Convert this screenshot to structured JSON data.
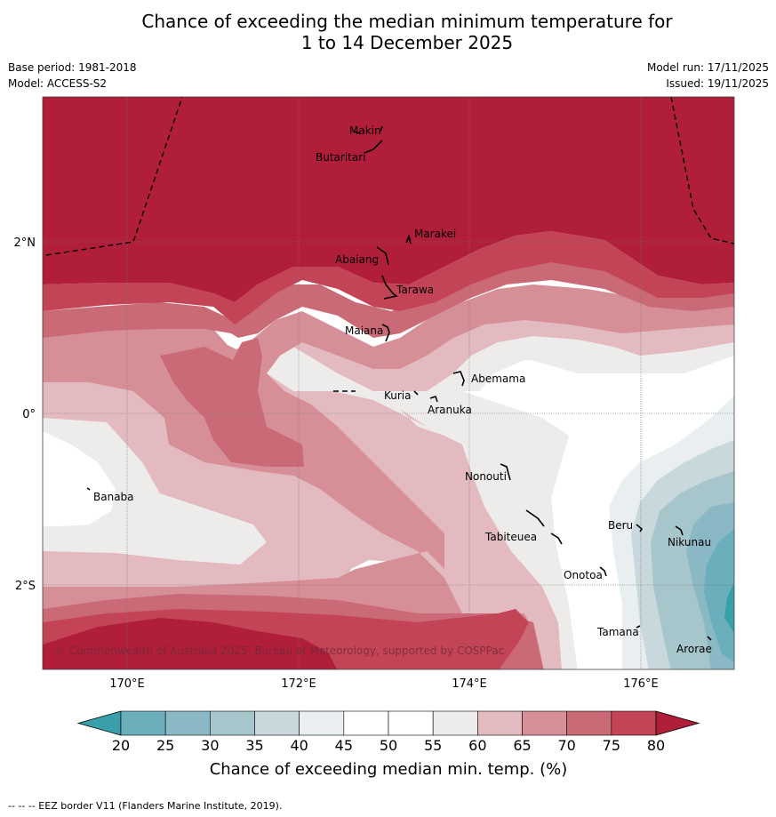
{
  "title": {
    "line1": "Chance of exceeding the median minimum temperature for",
    "line2": "1 to 14 December 2025"
  },
  "meta": {
    "base_period": "Base period: 1981-2018",
    "model": "Model: ACCESS-S2",
    "model_run": "Model run: 17/11/2025",
    "issued": "Issued: 19/11/2025"
  },
  "axes": {
    "x_ticks": [
      "170°E",
      "172°E",
      "174°E",
      "176°E"
    ],
    "y_ticks": [
      "2°N",
      "0°",
      "2°S"
    ]
  },
  "islands": [
    {
      "name": "Makin"
    },
    {
      "name": "Butaritari"
    },
    {
      "name": "Marakei"
    },
    {
      "name": "Abaiang"
    },
    {
      "name": "Tarawa"
    },
    {
      "name": "Maiana"
    },
    {
      "name": "Abemama"
    },
    {
      "name": "Kuria"
    },
    {
      "name": "Aranuka"
    },
    {
      "name": "Nonouti"
    },
    {
      "name": "Banaba"
    },
    {
      "name": "Beru"
    },
    {
      "name": "Nikunau"
    },
    {
      "name": "Tabiteuea"
    },
    {
      "name": "Onotoa"
    },
    {
      "name": "Tamana"
    },
    {
      "name": "Arorae"
    }
  ],
  "copyright": "© Commonwealth of Australia 2025, Bureau of Meteorology, supported by COSPPac",
  "colorbar": {
    "label": "Chance of exceeding median min. temp. (%)",
    "ticks": [
      "20",
      "25",
      "30",
      "35",
      "40",
      "45",
      "50",
      "55",
      "60",
      "65",
      "70",
      "75",
      "80"
    ],
    "colors": [
      "#39a0ab",
      "#6aafbb",
      "#8ab8c4",
      "#a7c6cc",
      "#c9d8dc",
      "#e9eff1",
      "#ffffff",
      "#ffffff",
      "#eeeceb",
      "#e2bac0",
      "#d78f97",
      "#ca6a76",
      "#c34456",
      "#b01e3a"
    ]
  },
  "footer_note": "--  --  -- EEZ border V11 (Flanders Marine Institute, 2019)."
}
